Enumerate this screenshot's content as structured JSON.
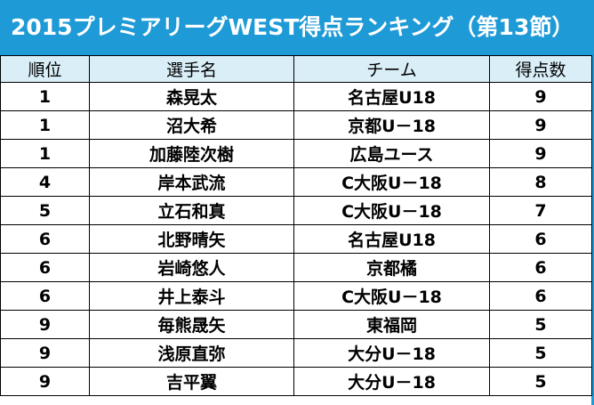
{
  "title": "2015プレミアリーグWEST得点ランキング（第13節）",
  "table": {
    "header": [
      "順位",
      "選手名",
      "チーム",
      "得点数"
    ],
    "rows": [
      [
        1,
        "森晃太",
        "名古屋U18",
        9
      ],
      [
        1,
        "沼大希",
        "京都U－18",
        9
      ],
      [
        1,
        "加藤陸次樹",
        "広島ユース",
        9
      ],
      [
        4,
        "岸本武流",
        "C大阪U－18",
        8
      ],
      [
        5,
        "立石和真",
        "C大阪U－18",
        7
      ],
      [
        6,
        "北野晴矢",
        "名古屋U18",
        6
      ],
      [
        6,
        "岩崎悠人",
        "京都橘",
        6
      ],
      [
        6,
        "井上泰斗",
        "C大阪U－18",
        6
      ],
      [
        9,
        "毎熊晟矢",
        "東福岡",
        5
      ],
      [
        9,
        "浅原直弥",
        "大分U－18",
        5
      ],
      [
        9,
        "吉平翼",
        "大分U－18",
        5
      ]
    ]
  }
}
